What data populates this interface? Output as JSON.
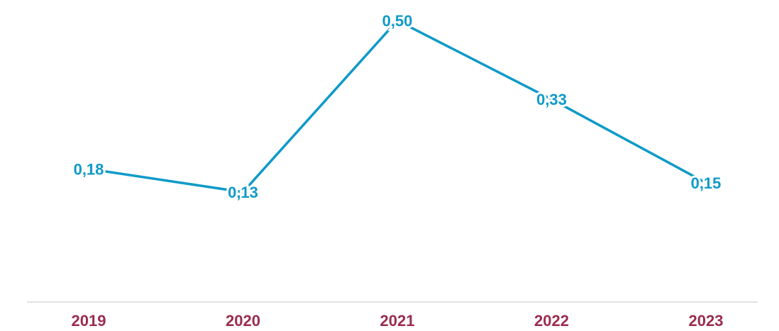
{
  "chart_data": {
    "type": "line",
    "categories": [
      "2019",
      "2020",
      "2021",
      "2022",
      "2023"
    ],
    "values": [
      0.18,
      0.13,
      0.5,
      0.33,
      0.15
    ],
    "value_labels": [
      "0,18",
      "0,13",
      "0,50",
      "0,33",
      "0,15"
    ],
    "title": "",
    "xlabel": "",
    "ylabel": "",
    "ylim": [
      0,
      0.5
    ],
    "grid": false,
    "legend": "none",
    "colors": {
      "series": "#0e9ac8",
      "category_labels": "#9b2c4e",
      "axis": "#d9d9d9"
    }
  }
}
